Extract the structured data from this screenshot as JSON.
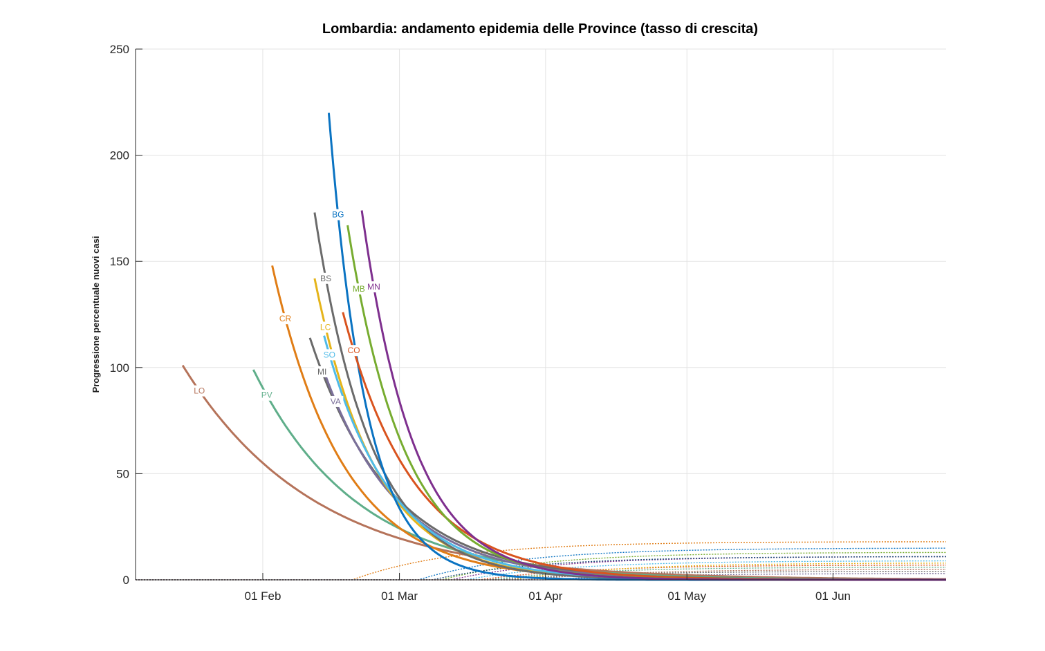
{
  "chart_data": {
    "type": "line",
    "title": "Lombardia: andamento epidemia delle Province (tasso di crescita)",
    "xlabel": "",
    "ylabel": "Progressione percentuale nuovi casi",
    "x_range": [
      "2020-01-05",
      "2020-06-25"
    ],
    "ylim": [
      0,
      250
    ],
    "y_ticks": [
      0,
      50,
      100,
      150,
      200,
      250
    ],
    "x_ticks": [
      {
        "date": "2020-02-01",
        "label": "01 Feb"
      },
      {
        "date": "2020-03-01",
        "label": "01 Mar"
      },
      {
        "date": "2020-04-01",
        "label": "01 Apr"
      },
      {
        "date": "2020-05-01",
        "label": "01 May"
      },
      {
        "date": "2020-06-01",
        "label": "01 Jun"
      }
    ],
    "grid": true,
    "series": [
      {
        "name": "LO",
        "color": "#b5735a",
        "start": "2020-01-15",
        "peak": 101,
        "label_at": 89,
        "decay_days": 28
      },
      {
        "name": "PV",
        "color": "#5fae8a",
        "start": "2020-01-30",
        "peak": 99,
        "label_at": 87,
        "decay_days": 22
      },
      {
        "name": "CR",
        "color": "#e07d16",
        "start": "2020-02-03",
        "peak": 148,
        "label_at": 123,
        "decay_days": 15
      },
      {
        "name": "MI",
        "color": "#6a6a6a",
        "start": "2020-02-11",
        "peak": 114,
        "label_at": 98,
        "decay_days": 17
      },
      {
        "name": "VA",
        "color": "#7a6f99",
        "start": "2020-02-14",
        "peak": 98,
        "label_at": 84,
        "decay_days": 16
      },
      {
        "name": "LC",
        "color": "#e5b41a",
        "start": "2020-02-12",
        "peak": 142,
        "label_at": 119,
        "decay_days": 13
      },
      {
        "name": "BS",
        "color": "#6b6b6b",
        "start": "2020-02-12",
        "peak": 173,
        "label_at": 142,
        "decay_days": 12
      },
      {
        "name": "SO",
        "color": "#4fbbe8",
        "start": "2020-02-14",
        "peak": 115,
        "label_at": 106,
        "decay_days": 14
      },
      {
        "name": "BG",
        "color": "#0a73c2",
        "start": "2020-02-15",
        "peak": 220,
        "label_at": 172,
        "decay_days": 8
      },
      {
        "name": "CO",
        "color": "#d9531e",
        "start": "2020-02-18",
        "peak": 126,
        "label_at": 108,
        "decay_days": 15
      },
      {
        "name": "MB",
        "color": "#77ac30",
        "start": "2020-02-19",
        "peak": 167,
        "label_at": 137,
        "decay_days": 12
      },
      {
        "name": "MN",
        "color": "#7e2f8e",
        "start": "2020-02-22",
        "peak": 174,
        "label_at": 138,
        "decay_days": 11
      }
    ],
    "tail_series": [
      {
        "color": "#e07d16",
        "start": "2020-02-20",
        "end": 18
      },
      {
        "color": "#0a73c2",
        "start": "2020-03-05",
        "end": 15
      },
      {
        "color": "#77ac30",
        "start": "2020-03-10",
        "end": 13
      },
      {
        "color": "#7e2f8e",
        "start": "2020-03-12",
        "end": 11
      },
      {
        "color": "#4fbbe8",
        "start": "2020-03-15",
        "end": 9
      },
      {
        "color": "#d9531e",
        "start": "2020-03-18",
        "end": 7
      },
      {
        "color": "#5fae8a",
        "start": "2020-03-20",
        "end": 6
      },
      {
        "color": "#6b6b6b",
        "start": "2020-03-22",
        "end": 4
      },
      {
        "color": "#e5b41a",
        "start": "2020-03-25",
        "end": 8
      },
      {
        "color": "#1f4e79",
        "start": "2020-03-08",
        "end": 11
      },
      {
        "color": "#b5735a",
        "start": "2020-03-28",
        "end": 5
      },
      {
        "color": "#7a6f99",
        "start": "2020-04-01",
        "end": 3
      }
    ]
  }
}
